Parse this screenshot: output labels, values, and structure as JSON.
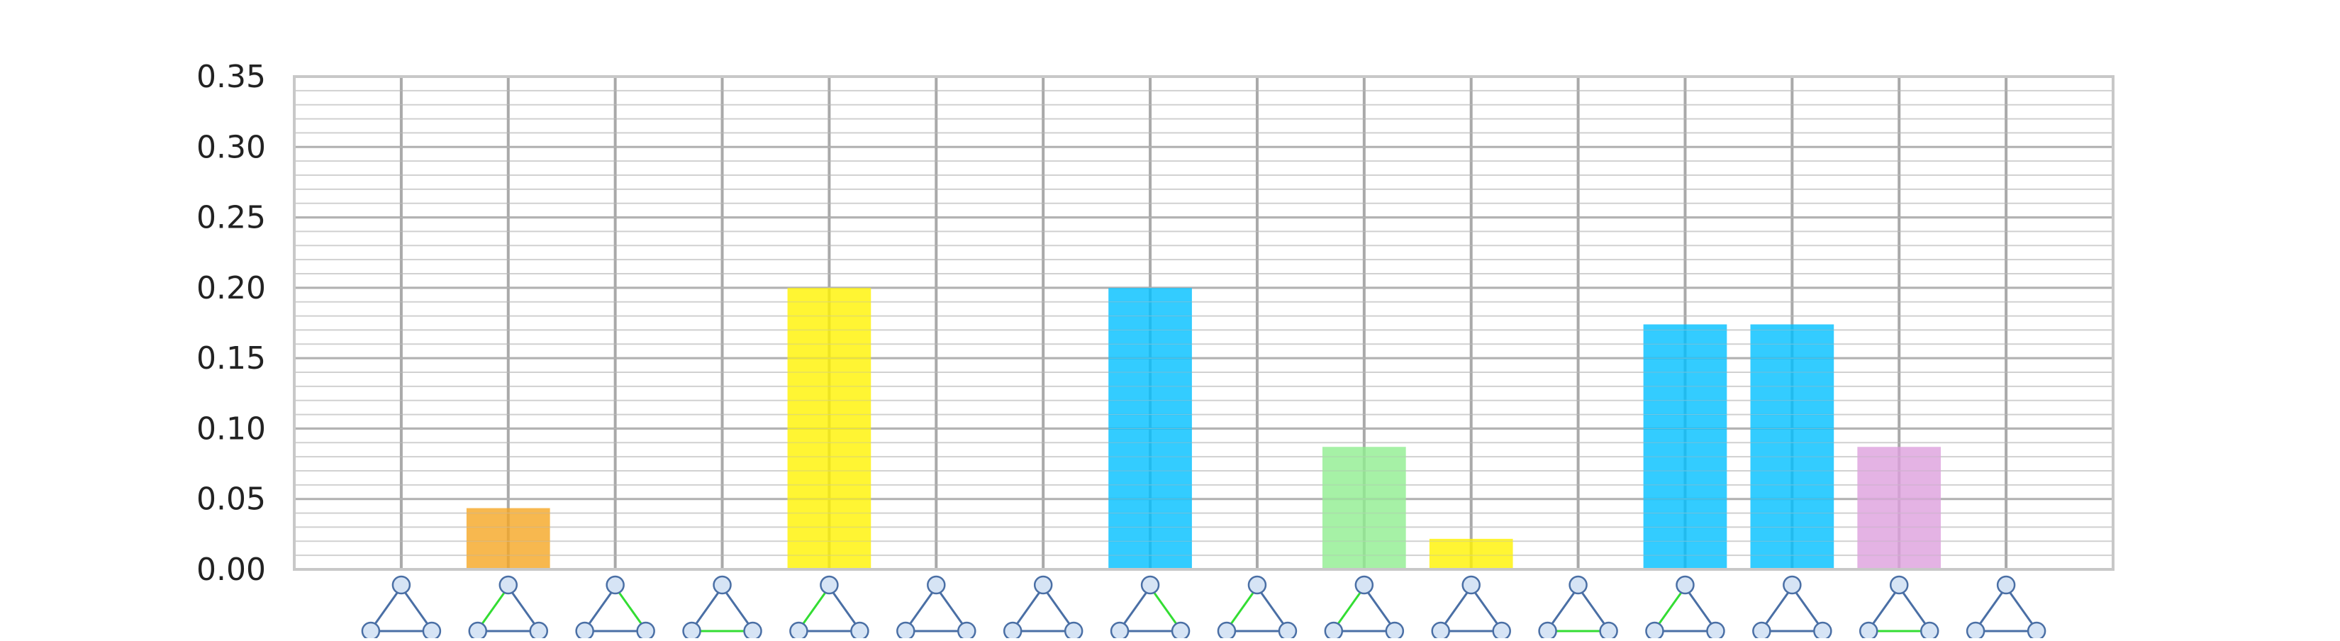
{
  "chart_data": {
    "type": "bar",
    "categories": [
      "",
      "",
      "",
      "",
      "",
      "",
      "",
      "",
      "",
      "",
      "",
      "",
      "",
      "",
      "",
      ""
    ],
    "values": [
      0,
      0.0435,
      0,
      0,
      0.2,
      0,
      0,
      0.2,
      0,
      0.087,
      0.0217,
      0,
      0.174,
      0.174,
      0.087,
      0
    ],
    "bar_colors": [
      "#f5a623",
      "#f5a623",
      "#f5a623",
      "#f5a623",
      "#fff200",
      "#f5a623",
      "#f5a623",
      "#00bfff",
      "#f5a623",
      "#90ee90",
      "#fff200",
      "#f5a623",
      "#00bfff",
      "#00bfff",
      "#dda0dd",
      "#f5a623"
    ],
    "green_edges": [
      [],
      [
        "left"
      ],
      [
        "right"
      ],
      [
        "bottom"
      ],
      [
        "left"
      ],
      [],
      [],
      [
        "right"
      ],
      [
        "left"
      ],
      [
        "left"
      ],
      [],
      [
        "bottom"
      ],
      [
        "left"
      ],
      [],
      [
        "bottom"
      ],
      []
    ],
    "ylim": [
      0,
      0.35
    ],
    "yticks": [
      "0.00",
      "0.05",
      "0.10",
      "0.15",
      "0.20",
      "0.25",
      "0.30",
      "0.35"
    ],
    "grid": true,
    "title": "",
    "xlabel": "",
    "ylabel": ""
  }
}
